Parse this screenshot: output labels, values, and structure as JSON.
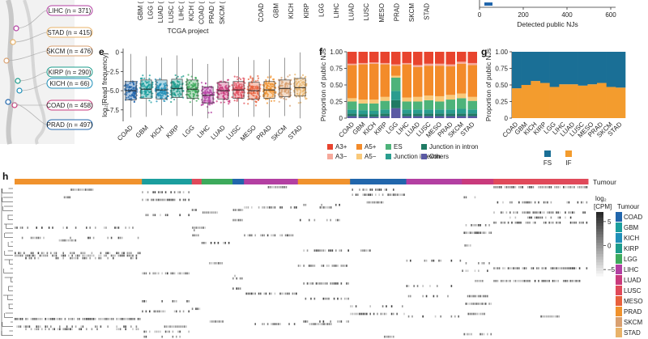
{
  "colors": {
    "COAD": "#2166ac",
    "GBM": "#1b9e9e",
    "KICH": "#1f8fb8",
    "KIRP": "#1c9c8c",
    "LGG": "#3daa5c",
    "LIHC": "#b33fa2",
    "LUAD": "#c93a7c",
    "LUSC": "#e0495a",
    "MESO": "#e8603c",
    "PRAD": "#f0922d",
    "SKCM": "#d9a070",
    "STAD": "#e8b36a"
  },
  "top_fragment": {
    "project_labels": [
      "GBM (",
      "LGG (",
      "LUAD (",
      "LUSC (",
      "LIHC (",
      "KICH (",
      "COAD (",
      "PRAD (",
      "SKCM ("
    ],
    "project_title": "TCGA project",
    "mid_labels": [
      "COAD",
      "GBM",
      "KICH",
      "KIRP",
      "LGG",
      "LIHC",
      "LUAD",
      "LUSC",
      "MESO",
      "PRAD",
      "SKCM",
      "STAD"
    ],
    "right_ticks": [
      "0",
      "200",
      "400",
      "600"
    ],
    "right_xlabel": "Detected public NJs"
  },
  "tree_labels": [
    {
      "text": "LIHC (n = 371)",
      "color": "#b33fa2"
    },
    {
      "text": "STAD (n = 415)",
      "color": "#e8b36a"
    },
    {
      "text": "SKCM (n = 476)",
      "color": "#d9a070"
    },
    {
      "text": "KIRP (n = 290)",
      "color": "#1c9c8c"
    },
    {
      "text": "KICH (n = 66)",
      "color": "#1f8fb8"
    },
    {
      "text": "COAD (n = 458)",
      "color": "#c93a7c"
    },
    {
      "text": "PRAD (n = 497)",
      "color": "#2166ac"
    }
  ],
  "panel_e": {
    "letter": "e",
    "ylabel": "log₂[Read frequency]",
    "yticks": [
      "0",
      "−2.5",
      "−5.0",
      "−7.5"
    ]
  },
  "panel_f": {
    "letter": "f",
    "ylabel": "Proportion of public NJs",
    "yticks": [
      "0",
      "0.25",
      "0.50",
      "0.75",
      "1.00"
    ],
    "legend": [
      {
        "label": "A3+",
        "color": "#e8442e"
      },
      {
        "label": "A3−",
        "color": "#f6a99b"
      },
      {
        "label": "A5+",
        "color": "#f38b2a"
      },
      {
        "label": "A5−",
        "color": "#f9c97a"
      },
      {
        "label": "ES",
        "color": "#4db37a"
      },
      {
        "label": "Junction in exon",
        "color": "#2a9d8f"
      },
      {
        "label": "Junction in intron",
        "color": "#1f7a63"
      },
      {
        "label": "Others",
        "color": "#5b5aa3"
      }
    ]
  },
  "panel_g": {
    "letter": "g",
    "ylabel": "Proportion of public NJs",
    "yticks": [
      "0",
      "0.25",
      "0.50",
      "0.75",
      "1.00"
    ],
    "legend": [
      {
        "label": "FS",
        "color": "#1a6f96"
      },
      {
        "label": "IF",
        "color": "#f39c2e"
      }
    ]
  },
  "panel_h": {
    "letter": "h",
    "top_label": "Tumour",
    "cbar_title_line1": "log₂",
    "cbar_title_line2": "[CPM]",
    "cbar_ticks": [
      "5",
      "0",
      "−5"
    ],
    "tumour_title": "Tumour",
    "tumour_legend": [
      "COAD",
      "GBM",
      "KICH",
      "KIRP",
      "LGG",
      "LIHC",
      "LUAD",
      "LUSC",
      "MESO",
      "PRAD",
      "SKCM",
      "STAD"
    ]
  },
  "chart_data": [
    {
      "type": "box",
      "title": "",
      "xlabel": "",
      "ylabel": "log₂[Read frequency]",
      "ylim": [
        -9,
        0.5
      ],
      "categories": [
        "COAD",
        "GBM",
        "KICH",
        "KIRP",
        "LGG",
        "LIHC",
        "LUAD",
        "LUSC",
        "MESO",
        "PRAD",
        "SKCM",
        "STAD"
      ],
      "median": [
        -5.0,
        -4.8,
        -4.9,
        -4.7,
        -4.8,
        -5.6,
        -5.0,
        -4.9,
        -5.0,
        -4.9,
        -4.7,
        -4.6
      ],
      "q1": [
        -6.2,
        -6.0,
        -6.1,
        -5.9,
        -6.0,
        -6.6,
        -6.1,
        -6.0,
        -6.1,
        -6.0,
        -5.8,
        -5.7
      ],
      "q3": [
        -3.8,
        -3.6,
        -3.6,
        -3.5,
        -3.6,
        -4.5,
        -3.9,
        -3.8,
        -3.9,
        -3.8,
        -3.6,
        -3.4
      ],
      "min": [
        -8.5,
        -8.4,
        -8.2,
        -8.3,
        -8.3,
        -8.6,
        -8.5,
        -8.4,
        -8.4,
        -8.5,
        -8.3,
        -8.6
      ],
      "max": [
        -0.2,
        -0.5,
        -0.7,
        -0.4,
        -0.8,
        -1.5,
        -0.8,
        -0.6,
        -1.0,
        -0.9,
        -0.7,
        0.0
      ]
    },
    {
      "type": "bar",
      "stacked": true,
      "title": "",
      "xlabel": "",
      "ylabel": "Proportion of public NJs",
      "ylim": [
        0,
        1
      ],
      "categories": [
        "COAD",
        "GBM",
        "KICH",
        "KIRP",
        "LGG",
        "LIHC",
        "LUAD",
        "LUSC",
        "MESO",
        "PRAD",
        "SKCM",
        "STAD"
      ],
      "series": [
        {
          "name": "Others",
          "values": [
            0.03,
            0.02,
            0.02,
            0.03,
            0.15,
            0.03,
            0.03,
            0.03,
            0.03,
            0.03,
            0.03,
            0.03
          ]
        },
        {
          "name": "Junction in intron",
          "values": [
            0.04,
            0.04,
            0.04,
            0.04,
            0.12,
            0.04,
            0.04,
            0.04,
            0.04,
            0.04,
            0.04,
            0.04
          ]
        },
        {
          "name": "Junction in exon",
          "values": [
            0.06,
            0.06,
            0.05,
            0.06,
            0.14,
            0.06,
            0.06,
            0.06,
            0.06,
            0.06,
            0.07,
            0.06
          ]
        },
        {
          "name": "ES",
          "values": [
            0.12,
            0.1,
            0.11,
            0.13,
            0.2,
            0.12,
            0.12,
            0.14,
            0.12,
            0.15,
            0.16,
            0.13
          ]
        },
        {
          "name": "A5−",
          "values": [
            0.05,
            0.06,
            0.06,
            0.06,
            0.03,
            0.06,
            0.07,
            0.07,
            0.08,
            0.07,
            0.07,
            0.06
          ]
        },
        {
          "name": "A5+",
          "values": [
            0.5,
            0.53,
            0.54,
            0.49,
            0.15,
            0.5,
            0.45,
            0.45,
            0.46,
            0.43,
            0.45,
            0.48
          ]
        },
        {
          "name": "A3−",
          "values": [
            0.02,
            0.02,
            0.02,
            0.02,
            0.02,
            0.02,
            0.03,
            0.03,
            0.03,
            0.03,
            0.03,
            0.03
          ]
        },
        {
          "name": "A3+",
          "values": [
            0.18,
            0.17,
            0.16,
            0.17,
            0.19,
            0.17,
            0.2,
            0.18,
            0.18,
            0.19,
            0.15,
            0.17
          ]
        }
      ]
    },
    {
      "type": "bar",
      "stacked": true,
      "title": "",
      "xlabel": "",
      "ylabel": "Proportion of public NJs",
      "ylim": [
        0,
        1
      ],
      "categories": [
        "COAD",
        "GBM",
        "KICH",
        "KIRP",
        "LGG",
        "LIHC",
        "LUAD",
        "LUSC",
        "MESO",
        "PRAD",
        "SKCM",
        "STAD"
      ],
      "series": [
        {
          "name": "IF",
          "values": [
            0.45,
            0.5,
            0.56,
            0.53,
            0.47,
            0.51,
            0.51,
            0.49,
            0.51,
            0.53,
            0.47,
            0.46
          ]
        },
        {
          "name": "FS",
          "values": [
            0.55,
            0.5,
            0.44,
            0.47,
            0.53,
            0.49,
            0.49,
            0.51,
            0.49,
            0.47,
            0.53,
            0.54
          ]
        }
      ]
    },
    {
      "type": "heatmap",
      "title": "",
      "colorbar_label": "log₂[CPM]",
      "colorbar_range": [
        -7,
        7
      ],
      "annotation_title": "Tumour",
      "column_groups": [
        {
          "name": "PRAD",
          "fraction": 0.222
        },
        {
          "name": "GBM",
          "fraction": 0.087
        },
        {
          "name": "LUSC",
          "fraction": 0.017
        },
        {
          "name": "LGG",
          "fraction": 0.054
        },
        {
          "name": "COAD",
          "fraction": 0.02
        },
        {
          "name": "LIHC",
          "fraction": 0.094
        },
        {
          "name": "PRAD",
          "fraction": 0.091
        },
        {
          "name": "COAD",
          "fraction": 0.098
        },
        {
          "name": "LIHC",
          "fraction": 0.097
        },
        {
          "name": "LUAD",
          "fraction": 0.055
        },
        {
          "name": "LUSC",
          "fraction": 0.165
        }
      ]
    }
  ]
}
